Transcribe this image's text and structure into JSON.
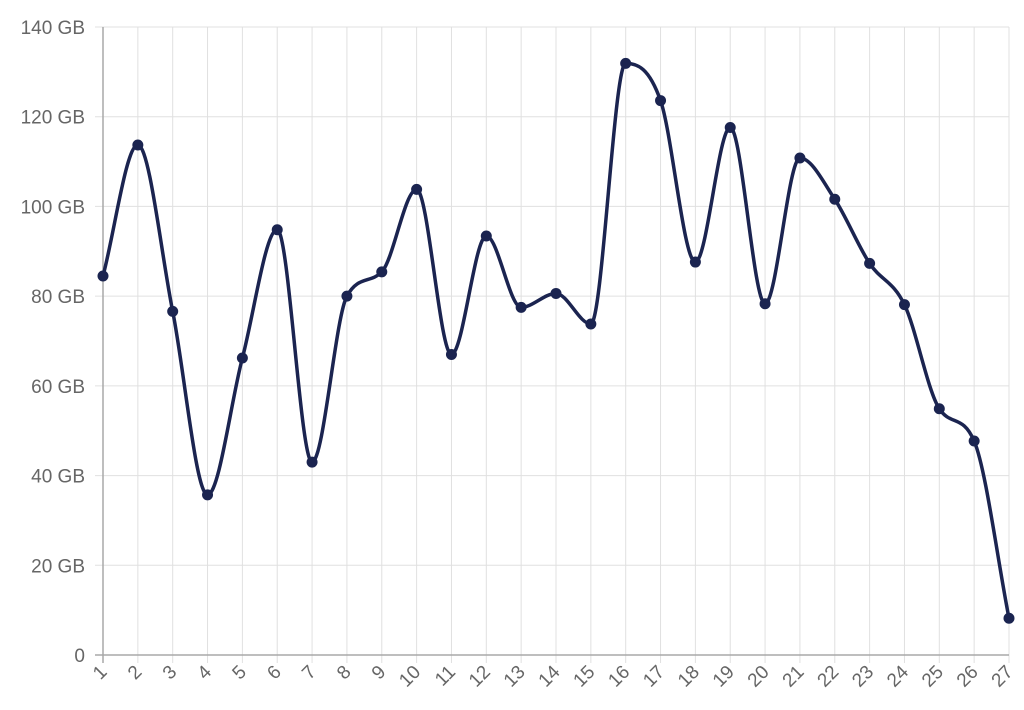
{
  "chart_data": {
    "type": "line",
    "title": "",
    "xlabel": "",
    "ylabel": "",
    "y_unit_suffix": " GB",
    "ylim": [
      0,
      140
    ],
    "y_ticks": [
      0,
      20,
      40,
      60,
      80,
      100,
      120,
      140
    ],
    "y_tick_labels": [
      "0",
      "20 GB",
      "40 GB",
      "60 GB",
      "80 GB",
      "100 GB",
      "120 GB",
      "140 GB"
    ],
    "categories": [
      "1",
      "2",
      "3",
      "4",
      "5",
      "6",
      "7",
      "8",
      "9",
      "10",
      "11",
      "12",
      "13",
      "14",
      "15",
      "16",
      "17",
      "18",
      "19",
      "20",
      "21",
      "22",
      "23",
      "24",
      "25",
      "26",
      "27"
    ],
    "series": [
      {
        "values": [
          84.5,
          113.7,
          76.6,
          35.7,
          66.2,
          94.8,
          43.0,
          80.0,
          85.4,
          103.8,
          67.0,
          93.4,
          77.5,
          80.6,
          73.8,
          131.9,
          123.6,
          87.6,
          117.6,
          78.3,
          110.8,
          101.6,
          87.3,
          78.1,
          54.9,
          47.7,
          8.2
        ],
        "color": "#1b2450"
      }
    ],
    "grid": true,
    "legend": "none",
    "gridline_color": "#e0e0e0",
    "axis_color": "#a8a8a8",
    "tick_label_color": "#666666"
  }
}
